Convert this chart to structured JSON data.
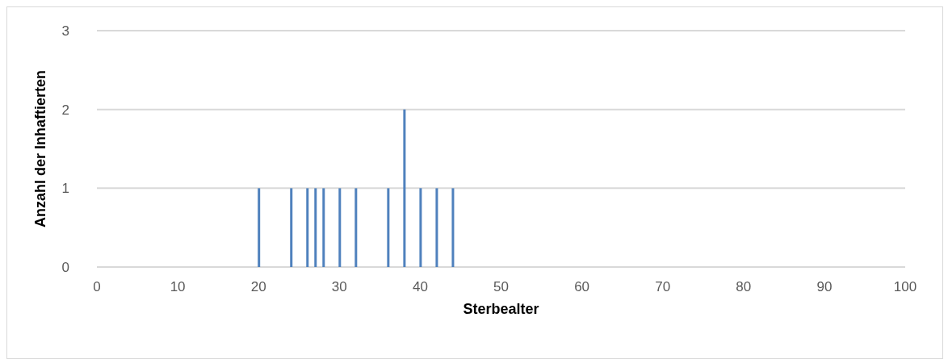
{
  "chart_data": {
    "type": "bar",
    "xlabel": "Sterbealter",
    "ylabel": "Anzahl der Inhaftierten",
    "x": [
      20,
      24,
      26,
      27,
      28,
      30,
      32,
      36,
      38,
      40,
      42,
      44
    ],
    "values": [
      1,
      1,
      1,
      1,
      1,
      1,
      1,
      1,
      2,
      1,
      1,
      1
    ],
    "color": "#4f81bd",
    "xlim": [
      0,
      100
    ],
    "xticks": [
      0,
      10,
      20,
      30,
      40,
      50,
      60,
      70,
      80,
      90,
      100
    ],
    "ylim": [
      0,
      3
    ],
    "yticks": [
      0,
      1,
      2,
      3
    ],
    "grid": "y"
  }
}
